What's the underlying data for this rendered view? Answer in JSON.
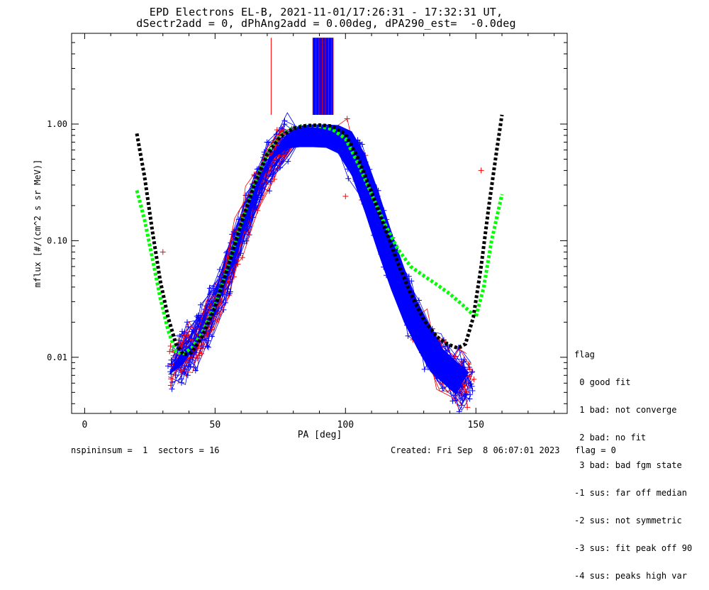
{
  "header": {
    "title_line1": "EPD Electrons EL-B, 2021-11-01/17:26:31 - 17:32:31 UT,",
    "title_line2": "dSectr2add = 0, dPhAng2add = 0.00deg, dPA290_est=  -0.0deg"
  },
  "footer": {
    "left": "nspininsum =  1  sectors = 16",
    "right": "Created: Fri Sep  8 06:07:01 2023   flag = 0"
  },
  "legend": {
    "title": "flag",
    "items": [
      " 0 good fit",
      " 1 bad: not converge",
      " 2 bad: no fit",
      " 3 bad: bad fgm state",
      "-1 sus: far off median",
      "-2 sus: not symmetric",
      "-3 sus: fit peak off 90",
      "-4 sus: peaks high var"
    ]
  },
  "colors": {
    "blue": "#0000ff",
    "red": "#ff0000",
    "green": "#00ff00",
    "black": "#000000"
  },
  "chart_data": {
    "type": "line",
    "xlabel": "PA [deg]",
    "ylabel": "mflux [#/(cm^2 s sr MeV)]",
    "xlim": [
      -5,
      185
    ],
    "ylim": [
      0.0033,
      6.0
    ],
    "ylog": true,
    "x_ticks": [
      0,
      50,
      100,
      150
    ],
    "y_ticks": [
      {
        "value": 0.01,
        "label": "0.01"
      },
      {
        "value": 0.1,
        "label": "0.10"
      },
      {
        "value": 1.0,
        "label": "1.00"
      }
    ],
    "series": [
      {
        "style": "black-dotted-fit",
        "x": [
          20,
          23,
          26,
          29,
          32,
          35,
          38,
          41,
          45,
          50,
          55,
          60,
          65,
          70,
          75,
          80,
          85,
          90,
          95,
          100,
          105,
          110,
          115,
          120,
          125,
          130,
          135,
          139,
          143,
          146,
          149,
          152,
          155,
          158,
          160
        ],
        "y": [
          0.83,
          0.35,
          0.12,
          0.045,
          0.022,
          0.013,
          0.0105,
          0.011,
          0.015,
          0.027,
          0.06,
          0.14,
          0.3,
          0.55,
          0.78,
          0.92,
          0.97,
          0.98,
          0.96,
          0.82,
          0.5,
          0.26,
          0.13,
          0.065,
          0.035,
          0.021,
          0.015,
          0.013,
          0.012,
          0.013,
          0.022,
          0.06,
          0.2,
          0.6,
          1.2
        ]
      },
      {
        "style": "green-dotted-fit",
        "x": [
          20,
          23,
          26,
          29,
          32,
          35,
          38,
          41,
          45,
          50,
          55,
          60,
          65,
          70,
          75,
          80,
          85,
          90,
          95,
          100,
          105,
          110,
          115,
          120,
          125,
          130,
          135,
          140,
          145,
          150,
          153,
          156,
          160
        ],
        "y": [
          0.27,
          0.15,
          0.07,
          0.032,
          0.017,
          0.011,
          0.0108,
          0.012,
          0.016,
          0.028,
          0.06,
          0.14,
          0.3,
          0.56,
          0.8,
          0.93,
          0.97,
          0.96,
          0.9,
          0.75,
          0.45,
          0.25,
          0.14,
          0.085,
          0.06,
          0.05,
          0.042,
          0.035,
          0.028,
          0.022,
          0.04,
          0.1,
          0.25
        ]
      },
      {
        "style": "blue-median",
        "x": [
          35,
          40,
          45,
          50,
          55,
          60,
          65,
          70,
          75,
          80,
          85,
          90,
          95,
          100,
          105,
          110,
          115,
          120,
          125,
          130,
          135,
          140,
          145
        ],
        "y": [
          0.009,
          0.011,
          0.016,
          0.028,
          0.055,
          0.12,
          0.25,
          0.45,
          0.65,
          0.78,
          0.8,
          0.8,
          0.79,
          0.7,
          0.45,
          0.22,
          0.1,
          0.048,
          0.025,
          0.015,
          0.0095,
          0.0075,
          0.006
        ]
      }
    ]
  }
}
